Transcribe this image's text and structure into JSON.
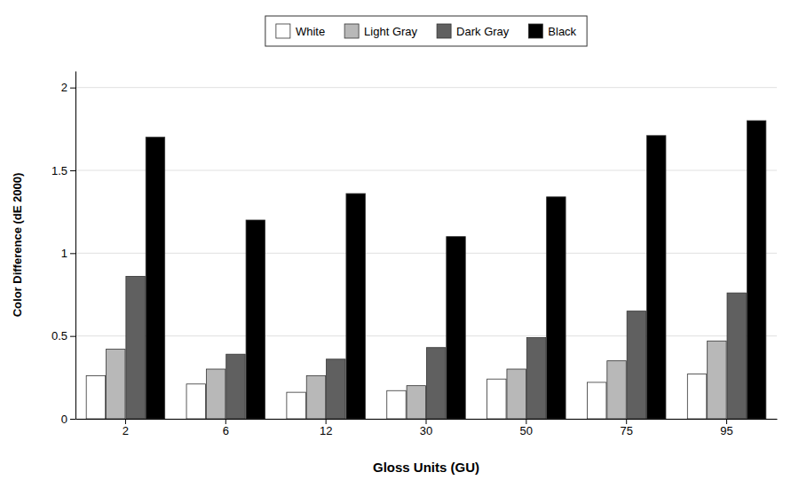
{
  "chart_data": {
    "type": "bar",
    "xlabel": "Gloss Units (GU)",
    "ylabel": "Color Difference (dE 2000)",
    "categories": [
      "2",
      "6",
      "12",
      "30",
      "50",
      "75",
      "95"
    ],
    "series": [
      {
        "name": "White",
        "color": "#ffffff",
        "values": [
          0.26,
          0.21,
          0.16,
          0.17,
          0.24,
          0.22,
          0.27
        ]
      },
      {
        "name": "Light Gray",
        "color": "#b8b8b8",
        "values": [
          0.42,
          0.3,
          0.26,
          0.2,
          0.3,
          0.35,
          0.47
        ]
      },
      {
        "name": "Dark Gray",
        "color": "#606060",
        "values": [
          0.86,
          0.39,
          0.36,
          0.43,
          0.49,
          0.65,
          0.76
        ]
      },
      {
        "name": "Black",
        "color": "#000000",
        "values": [
          1.7,
          1.2,
          1.36,
          1.1,
          1.34,
          1.71,
          1.8
        ]
      }
    ],
    "ylim": [
      0,
      2.1
    ],
    "yticks": [
      0,
      0.5,
      1,
      1.5,
      2
    ],
    "grid": true,
    "legend": "top"
  }
}
